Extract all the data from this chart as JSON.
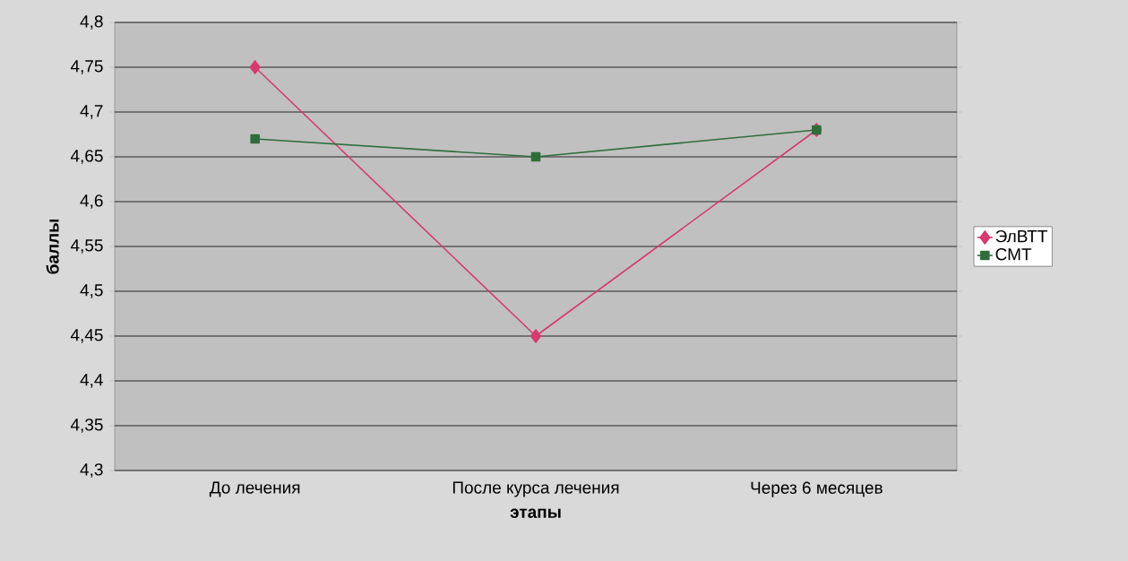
{
  "chart_data": {
    "type": "line",
    "xlabel": "этапы",
    "ylabel": "баллы",
    "categories": [
      "До лечения",
      "После курса лечения",
      "Через 6 месяцев"
    ],
    "series": [
      {
        "name": "ЭлВТТ",
        "color": "#d63a6e",
        "marker": "diamond",
        "values": [
          4.75,
          4.45,
          4.68
        ]
      },
      {
        "name": "СМТ",
        "color": "#2f6e3b",
        "marker": "square",
        "values": [
          4.67,
          4.65,
          4.68
        ]
      }
    ],
    "ylim": [
      4.3,
      4.8
    ],
    "yticks": [
      {
        "value": 4.3,
        "label": "4,3"
      },
      {
        "value": 4.35,
        "label": "4,35"
      },
      {
        "value": 4.4,
        "label": "4,4"
      },
      {
        "value": 4.45,
        "label": "4,45"
      },
      {
        "value": 4.5,
        "label": "4,5"
      },
      {
        "value": 4.55,
        "label": "4,55"
      },
      {
        "value": 4.6,
        "label": "4,6"
      },
      {
        "value": 4.65,
        "label": "4,65"
      },
      {
        "value": 4.7,
        "label": "4,7"
      },
      {
        "value": 4.75,
        "label": "4,75"
      },
      {
        "value": 4.8,
        "label": "4,8"
      }
    ],
    "grid": "y",
    "legend": "right",
    "line_style": "solid"
  }
}
